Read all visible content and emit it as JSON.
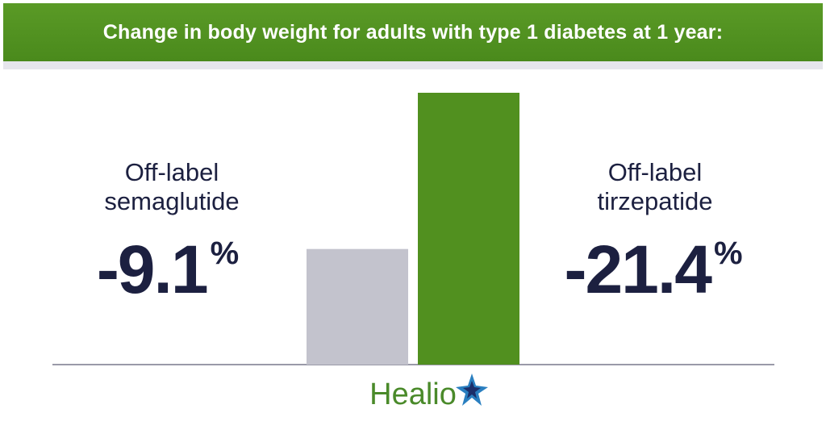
{
  "chart_data": {
    "type": "bar",
    "title": "Change in body weight for adults with type 1 diabetes at 1 year:",
    "categories": [
      "Off-label semaglutide",
      "Off-label tirzepatide"
    ],
    "values": [
      -9.1,
      -21.4
    ],
    "unit": "%",
    "colors": [
      "#c3c3cd",
      "#51901f"
    ],
    "logo": "Healio"
  }
}
